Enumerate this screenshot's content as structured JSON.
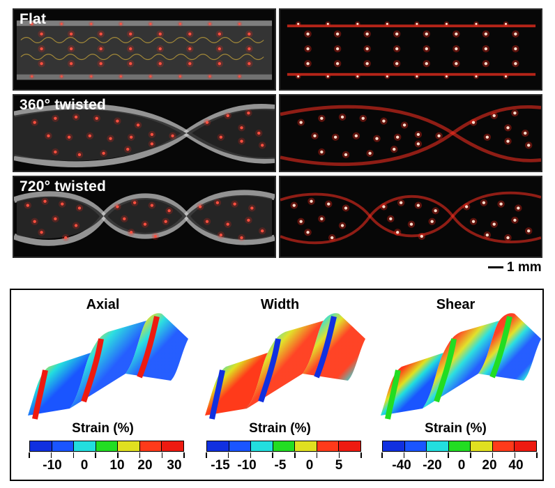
{
  "photos": {
    "labels": [
      "Flat",
      "360° twisted",
      "720° twisted"
    ],
    "scale_bar": "1 mm"
  },
  "simulations": [
    {
      "title": "Axial",
      "strain_title": "Strain (%)",
      "tick_labels": [
        "-10",
        "0",
        "10",
        "20",
        "30"
      ]
    },
    {
      "title": "Width",
      "strain_title": "Strain (%)",
      "tick_labels": [
        "-15",
        "-10",
        "-5",
        "0",
        "5"
      ]
    },
    {
      "title": "Shear",
      "strain_title": "Strain (%)",
      "tick_labels": [
        "-40",
        "-20",
        "0",
        "20",
        "40"
      ]
    }
  ],
  "colormap": [
    "#1030e0",
    "#1a55ff",
    "#22dede",
    "#22dd22",
    "#e0e020",
    "#ff3a1a",
    "#ee1a10"
  ],
  "colors": {
    "led": "#ff2a1a",
    "photo_bg": "#070707",
    "strip": "#c9c9c9"
  }
}
